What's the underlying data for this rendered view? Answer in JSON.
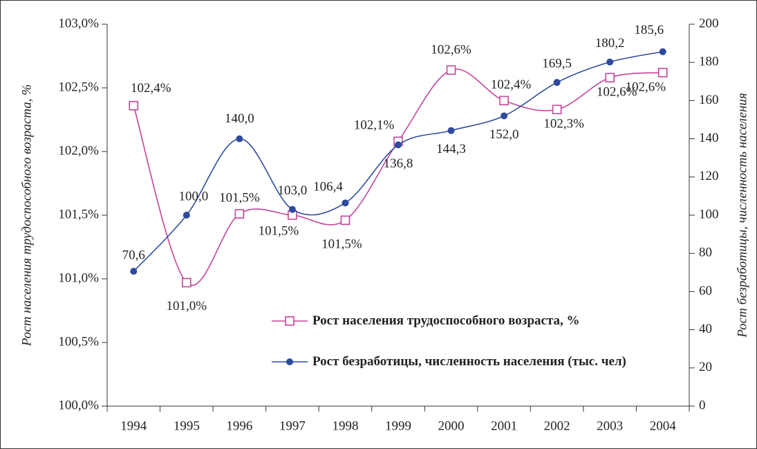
{
  "chart_data": {
    "type": "line",
    "categories": [
      "1994",
      "1995",
      "1996",
      "1997",
      "1998",
      "1999",
      "2000",
      "2001",
      "2002",
      "2003",
      "2004"
    ],
    "ylabel": "Рост населения трудоспособного возраста, %",
    "y2label": "Рост безработицы, численность населения",
    "ylim": [
      100,
      103
    ],
    "yticks": [
      {
        "value": 100,
        "label": "100,0%"
      },
      {
        "value": 100.5,
        "label": "100,5%"
      },
      {
        "value": 101,
        "label": "101,0%"
      },
      {
        "value": 101.5,
        "label": "101,5%"
      },
      {
        "value": 102,
        "label": "102,0%"
      },
      {
        "value": 102.5,
        "label": "102,5%"
      },
      {
        "value": 103,
        "label": "103,0%"
      }
    ],
    "y2lim": [
      0,
      200
    ],
    "y2ticks": [
      0,
      20,
      40,
      60,
      80,
      100,
      120,
      140,
      160,
      180,
      200
    ],
    "series": [
      {
        "name": "Рост населения трудоспособного возраста, %",
        "color": "#c4449a",
        "marker": "square",
        "values": [
          102.36,
          100.97,
          101.51,
          101.5,
          101.46,
          102.08,
          102.64,
          102.4,
          102.33,
          102.58,
          102.62
        ],
        "value_labels": [
          "102,4%",
          "101,0%",
          "101,5%",
          "101,5%",
          "101,5%",
          "102,1%",
          "102,6%",
          "102,4%",
          "102,3%",
          "102,6%",
          "102,6%"
        ]
      },
      {
        "name": "Рост безработицы, численность населения (тыс. чел)",
        "color": "#2e4a9e",
        "marker": "circle",
        "axis": "y2",
        "values": [
          70.6,
          100.0,
          140.0,
          103.0,
          106.4,
          136.8,
          144.3,
          152.0,
          169.5,
          180.2,
          185.6
        ],
        "value_labels": [
          "70,6",
          "100,0",
          "140,0",
          "103,0",
          "106,4",
          "136,8",
          "144,3",
          "152,0",
          "169,5",
          "180,2",
          "185,6"
        ]
      }
    ]
  }
}
